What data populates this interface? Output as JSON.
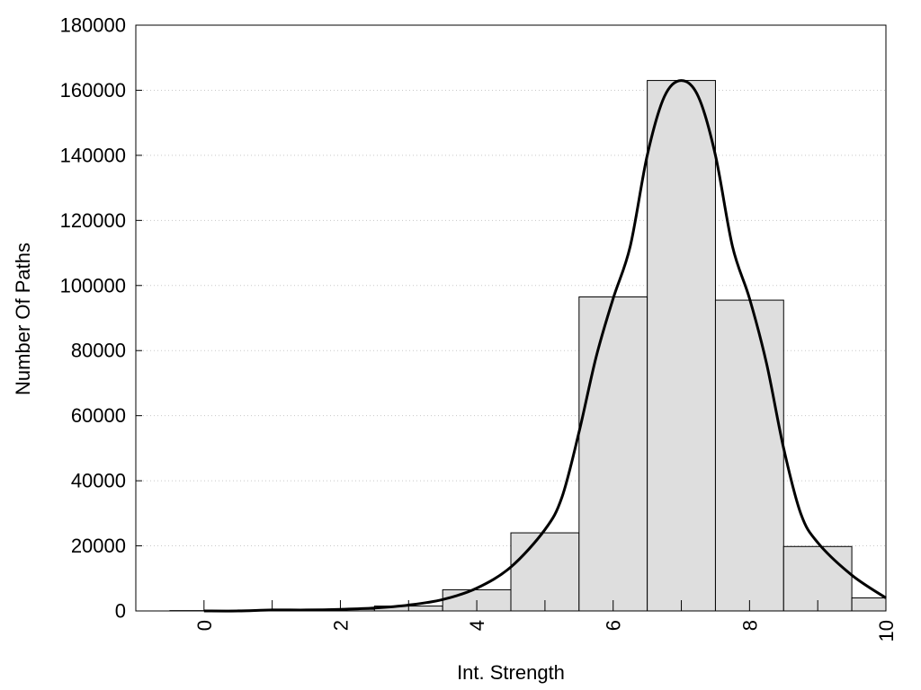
{
  "chart_data": {
    "type": "bar",
    "title": "",
    "xlabel": "Int. Strength",
    "ylabel": "Number Of Paths",
    "xlim": [
      -1,
      10
    ],
    "ylim": [
      0,
      180000
    ],
    "x_ticks": [
      "0",
      "2",
      "4",
      "6",
      "8",
      "10"
    ],
    "x_tick_values": [
      0,
      2,
      4,
      6,
      8,
      10
    ],
    "y_ticks": [
      "0",
      "20000",
      "40000",
      "60000",
      "80000",
      "100000",
      "120000",
      "140000",
      "160000",
      "180000"
    ],
    "y_tick_values": [
      0,
      20000,
      40000,
      60000,
      80000,
      100000,
      120000,
      140000,
      160000,
      180000
    ],
    "grid": "horizontal dotted",
    "bin_width": 1,
    "bins": {
      "centers": [
        0,
        1,
        2,
        3,
        4,
        5,
        6,
        7,
        8,
        9,
        10
      ],
      "values": [
        100,
        300,
        500,
        1500,
        6500,
        24000,
        96500,
        163000,
        95500,
        19800,
        4000
      ]
    },
    "curve": {
      "x": [
        0,
        0.5,
        1,
        1.5,
        2,
        2.5,
        3,
        3.5,
        4,
        4.5,
        5,
        5.25,
        5.5,
        5.75,
        6,
        6.25,
        6.5,
        6.75,
        7,
        7.25,
        7.5,
        7.75,
        8,
        8.25,
        8.5,
        8.75,
        9,
        9.5,
        10
      ],
      "y": [
        0,
        0,
        300,
        300,
        500,
        900,
        1800,
        3500,
        7000,
        13500,
        25000,
        35000,
        55000,
        78000,
        96000,
        112000,
        140000,
        158000,
        163000,
        158000,
        140000,
        112000,
        96000,
        76000,
        50000,
        30000,
        21000,
        11000,
        4000
      ]
    },
    "colors": {
      "bar_fill": "#dedede",
      "bar_stroke": "#000000",
      "curve": "#000000",
      "grid": "#c8c8c8"
    }
  }
}
